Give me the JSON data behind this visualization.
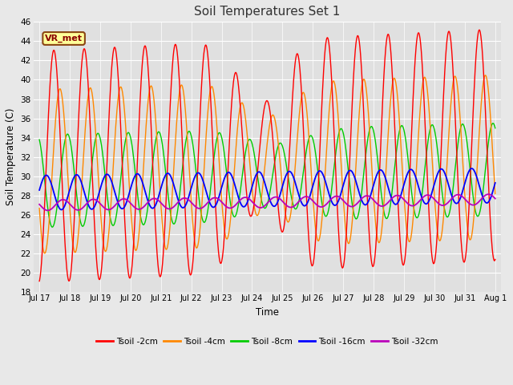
{
  "title": "Soil Temperatures Set 1",
  "xlabel": "Time",
  "ylabel": "Soil Temperature (C)",
  "ylim": [
    18,
    46
  ],
  "yticks": [
    18,
    20,
    22,
    24,
    26,
    28,
    30,
    32,
    34,
    36,
    38,
    40,
    42,
    44,
    46
  ],
  "fig_bg": "#e8e8e8",
  "plot_bg": "#e0e0e0",
  "grid_color": "#ffffff",
  "series": {
    "Tsoil -2cm": {
      "color": "#ff0000",
      "lw": 1.0
    },
    "Tsoil -4cm": {
      "color": "#ff8800",
      "lw": 1.0
    },
    "Tsoil -8cm": {
      "color": "#00cc00",
      "lw": 1.0
    },
    "Tsoil -16cm": {
      "color": "#0000ff",
      "lw": 1.3
    },
    "Tsoil -32cm": {
      "color": "#bb00bb",
      "lw": 1.3
    }
  },
  "annotation_text": "VR_met",
  "tick_labels": [
    "Jul 17",
    "Jul 18",
    "Jul 19",
    "Jul 20",
    "Jul 21",
    "Jul 22",
    "Jul 23",
    "Jul 24",
    "Jul 25",
    "Jul 26",
    "Jul 27",
    "Jul 28",
    "Jul 29",
    "Jul 30",
    "Jul 31",
    "Aug 1"
  ]
}
